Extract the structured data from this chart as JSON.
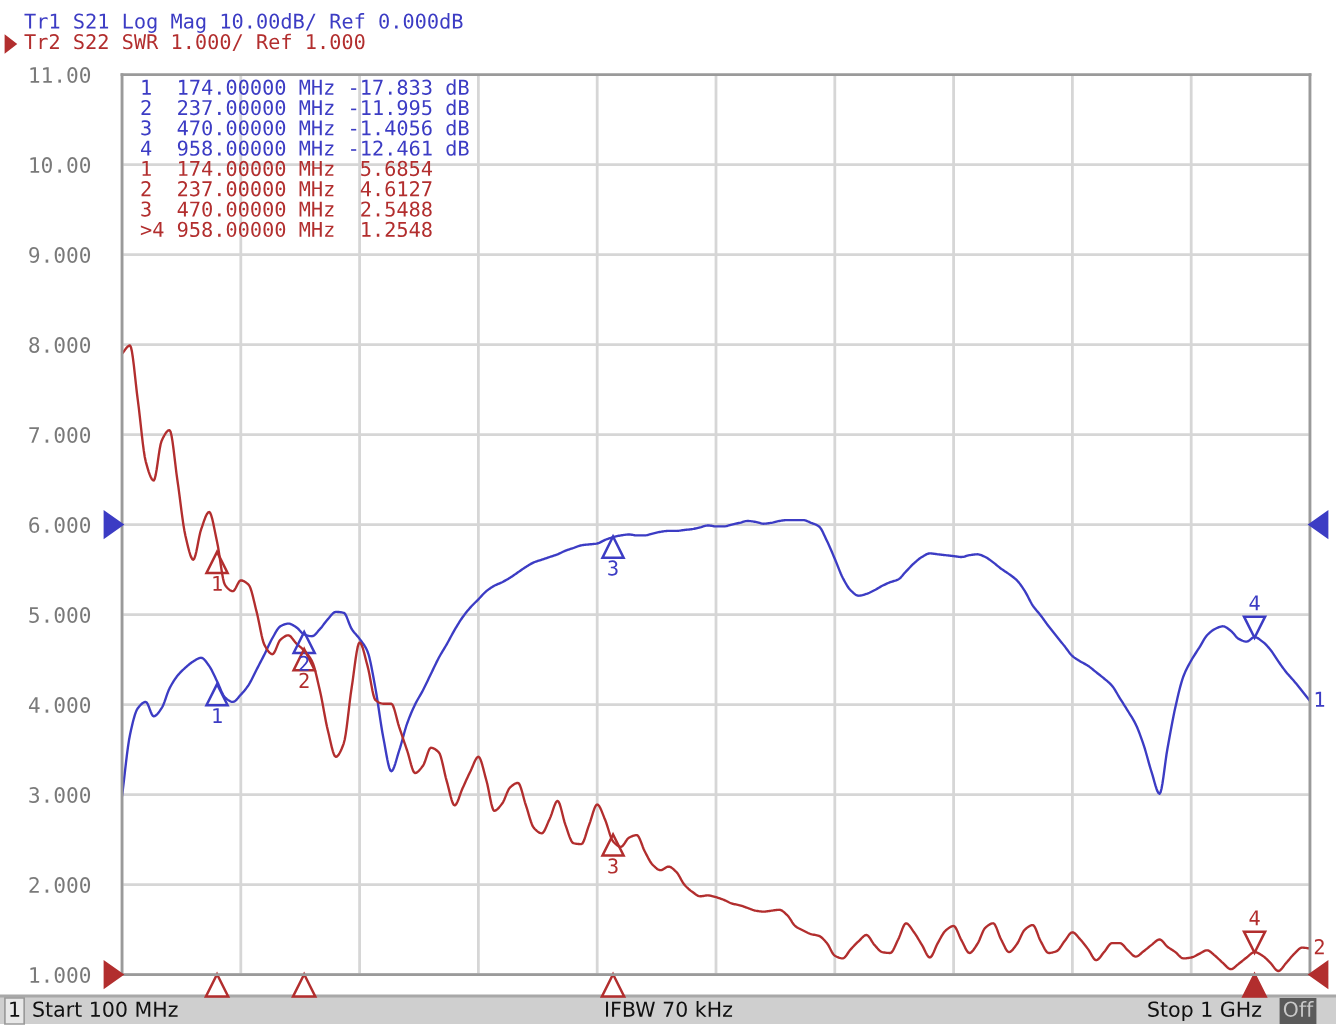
{
  "chart_data": {
    "type": "line",
    "title": "Tr1 S21 Log Mag 10.00dB/ Ref 0.000dB",
    "subtitle": "Tr2 S22 SWR 1.000/ Ref 1.000",
    "categories": [
      null,
      null,
      null,
      null,
      null,
      null,
      null,
      null,
      null,
      null,
      null,
      null,
      null,
      null,
      null,
      null,
      null,
      null,
      null,
      null,
      null,
      null,
      null,
      null,
      null,
      null,
      null,
      null,
      null,
      null,
      null,
      null,
      null,
      null,
      null,
      null,
      null,
      null,
      null,
      null,
      null,
      null,
      null,
      null,
      null,
      null,
      null,
      null,
      null,
      null,
      null,
      null,
      null,
      null,
      null,
      null,
      null,
      null,
      null,
      null,
      null,
      null,
      null,
      null,
      null,
      null,
      null,
      null,
      null,
      null,
      null,
      null,
      null,
      null,
      null,
      null,
      null,
      null,
      null,
      null,
      null,
      null,
      null,
      null,
      null,
      null,
      null,
      null,
      null,
      null,
      null,
      null,
      null,
      null,
      null,
      null,
      null,
      null,
      null,
      null,
      null,
      null,
      null,
      null,
      null,
      null,
      null,
      null,
      null,
      null,
      null,
      null,
      null,
      null,
      null,
      null,
      null,
      null,
      null,
      null,
      null,
      null,
      null,
      null,
      null,
      null,
      null,
      null,
      null,
      null,
      null,
      null,
      null,
      null,
      null,
      null,
      null,
      null,
      null,
      null,
      null,
      null,
      null,
      null,
      null,
      null,
      null,
      null,
      null,
      null,
      null
    ],
    "series": [
      {
        "color": "#3c3cc4",
        "values": [
          2.98,
          3.66,
          3.96,
          4.03,
          3.87,
          3.96,
          4.18,
          4.32,
          4.41,
          4.48,
          4.52,
          4.43,
          4.26,
          4.08,
          4.03,
          4.11,
          4.22,
          4.39,
          4.56,
          4.74,
          4.87,
          4.9,
          4.86,
          4.78,
          4.76,
          4.84,
          4.95,
          5.03,
          5.02,
          4.84,
          4.73,
          4.59,
          4.18,
          3.63,
          3.26,
          3.49,
          3.79,
          4.0,
          4.16,
          4.34,
          4.52,
          4.67,
          4.83,
          4.97,
          5.08,
          5.17,
          5.26,
          5.32,
          5.36,
          5.41,
          5.47,
          5.53,
          5.58,
          5.61,
          5.64,
          5.67,
          5.71,
          5.74,
          5.77,
          5.78,
          5.79,
          5.83,
          5.86,
          5.88,
          5.89,
          5.88,
          5.88,
          5.9,
          5.92,
          5.93,
          5.93,
          5.94,
          5.95,
          5.97,
          5.99,
          5.98,
          5.98,
          6.0,
          6.02,
          6.04,
          6.03,
          6.01,
          6.02,
          6.04,
          6.05,
          6.05,
          6.05,
          6.02,
          5.98,
          5.82,
          5.62,
          5.41,
          5.27,
          5.21,
          5.23,
          5.27,
          5.32,
          5.36,
          5.39,
          5.48,
          5.57,
          5.64,
          5.68,
          5.67,
          5.66,
          5.65,
          5.64,
          5.66,
          5.67,
          5.64,
          5.58,
          5.51,
          5.45,
          5.38,
          5.26,
          5.1,
          4.99,
          4.87,
          4.76,
          4.65,
          4.54,
          4.48,
          4.43,
          4.36,
          4.29,
          4.21,
          4.07,
          3.93,
          3.78,
          3.55,
          3.25,
          3.01,
          3.51,
          3.97,
          4.31,
          4.49,
          4.63,
          4.77,
          4.84,
          4.87,
          4.82,
          4.73,
          4.7,
          4.75,
          4.7,
          4.61,
          4.48,
          4.36,
          4.26,
          4.15,
          4.04
        ]
      },
      {
        "color": "#b22e2e",
        "values": [
          7.9,
          7.99,
          7.38,
          6.7,
          6.49,
          6.93,
          7.05,
          6.49,
          5.88,
          5.61,
          5.95,
          6.14,
          5.81,
          5.33,
          5.26,
          5.38,
          5.33,
          5.03,
          4.66,
          4.56,
          4.72,
          4.77,
          4.68,
          4.6,
          4.48,
          4.15,
          3.71,
          3.42,
          3.57,
          4.19,
          4.69,
          4.43,
          4.05,
          4.01,
          4.01,
          3.75,
          3.49,
          3.24,
          3.32,
          3.52,
          3.47,
          3.15,
          2.88,
          3.07,
          3.26,
          3.42,
          3.16,
          2.82,
          2.9,
          3.08,
          3.13,
          2.88,
          2.63,
          2.57,
          2.73,
          2.93,
          2.66,
          2.46,
          2.45,
          2.67,
          2.89,
          2.72,
          2.48,
          2.42,
          2.52,
          2.55,
          2.37,
          2.22,
          2.16,
          2.2,
          2.14,
          2.0,
          1.92,
          1.87,
          1.88,
          1.86,
          1.83,
          1.79,
          1.77,
          1.74,
          1.71,
          1.7,
          1.71,
          1.72,
          1.66,
          1.54,
          1.49,
          1.45,
          1.43,
          1.35,
          1.21,
          1.18,
          1.28,
          1.37,
          1.44,
          1.33,
          1.25,
          1.24,
          1.39,
          1.57,
          1.47,
          1.33,
          1.19,
          1.35,
          1.49,
          1.54,
          1.38,
          1.24,
          1.34,
          1.52,
          1.57,
          1.39,
          1.25,
          1.34,
          1.5,
          1.55,
          1.37,
          1.24,
          1.26,
          1.37,
          1.47,
          1.39,
          1.28,
          1.16,
          1.25,
          1.35,
          1.35,
          1.27,
          1.2,
          1.26,
          1.33,
          1.39,
          1.31,
          1.25,
          1.18,
          1.19,
          1.23,
          1.27,
          1.21,
          1.13,
          1.06,
          1.12,
          1.19,
          1.25,
          1.21,
          1.13,
          1.04,
          1.13,
          1.23,
          1.3,
          1.29
        ]
      },
      {
        "type": "scatter",
        "name": "1",
        "color": "#3c3cc4",
        "marker": "triangle",
        "values": [
          null,
          null,
          null,
          null,
          null,
          null,
          null,
          null,
          null,
          null,
          null,
          null,
          4.11,
          null,
          null,
          null,
          null,
          null,
          null,
          null,
          null,
          null,
          null,
          null,
          null,
          null,
          null,
          null,
          null,
          null,
          null,
          null,
          null,
          null,
          null,
          null,
          null,
          null,
          null,
          null,
          null,
          null,
          null,
          null,
          null,
          null,
          null,
          null,
          null,
          null,
          null,
          null,
          null,
          null,
          null,
          null,
          null,
          null,
          null,
          null,
          null,
          null,
          null,
          null,
          null,
          null,
          null,
          null,
          null,
          null,
          null,
          null,
          null,
          null,
          null,
          null,
          null,
          null,
          null,
          null,
          null,
          null,
          null,
          null,
          null,
          null,
          null,
          null,
          null,
          null,
          null,
          null,
          null,
          null,
          null,
          null,
          null,
          null,
          null,
          null,
          null,
          null,
          null,
          null,
          null,
          null,
          null,
          null,
          null,
          null,
          null,
          null,
          null,
          null,
          null,
          null,
          null,
          null,
          null,
          null,
          null,
          null,
          null,
          null,
          null,
          null,
          null,
          null,
          null,
          null,
          null,
          null,
          null,
          null,
          null,
          null,
          null,
          null,
          null,
          null,
          null,
          null,
          null,
          null,
          null,
          null,
          null,
          null,
          null,
          null,
          null
        ]
      },
      {
        "type": "scatter",
        "name": "2",
        "color": "#3c3cc4",
        "marker": "triangle",
        "values": [
          null,
          null,
          null,
          null,
          null,
          null,
          null,
          null,
          null,
          null,
          null,
          null,
          null,
          null,
          null,
          null,
          null,
          null,
          null,
          null,
          null,
          null,
          null,
          4.69,
          null,
          null,
          null,
          null,
          null,
          null,
          null,
          null,
          null,
          null,
          null,
          null,
          null,
          null,
          null,
          null,
          null,
          null,
          null,
          null,
          null,
          null,
          null,
          null,
          null,
          null,
          null,
          null,
          null,
          null,
          null,
          null,
          null,
          null,
          null,
          null,
          null,
          null,
          null,
          null,
          null,
          null,
          null,
          null,
          null,
          null,
          null,
          null,
          null,
          null,
          null,
          null,
          null,
          null,
          null,
          null,
          null,
          null,
          null,
          null,
          null,
          null,
          null,
          null,
          null,
          null,
          null,
          null,
          null,
          null,
          null,
          null,
          null,
          null,
          null,
          null,
          null,
          null,
          null,
          null,
          null,
          null,
          null,
          null,
          null,
          null,
          null,
          null,
          null,
          null,
          null,
          null,
          null,
          null,
          null,
          null,
          null,
          null,
          null,
          null,
          null,
          null,
          null,
          null,
          null,
          null,
          null,
          null,
          null,
          null,
          null,
          null,
          null,
          null,
          null,
          null,
          null,
          null,
          null,
          null,
          null,
          null,
          null,
          null,
          null,
          null,
          null
        ]
      },
      {
        "type": "scatter",
        "name": "3",
        "color": "#3c3cc4",
        "marker": "triangle",
        "values": [
          null,
          null,
          null,
          null,
          null,
          null,
          null,
          null,
          null,
          null,
          null,
          null,
          null,
          null,
          null,
          null,
          null,
          null,
          null,
          null,
          null,
          null,
          null,
          null,
          null,
          null,
          null,
          null,
          null,
          null,
          null,
          null,
          null,
          null,
          null,
          null,
          null,
          null,
          null,
          null,
          null,
          null,
          null,
          null,
          null,
          null,
          null,
          null,
          null,
          null,
          null,
          null,
          null,
          null,
          null,
          null,
          null,
          null,
          null,
          null,
          null,
          null,
          5.75,
          null,
          null,
          null,
          null,
          null,
          null,
          null,
          null,
          null,
          null,
          null,
          null,
          null,
          null,
          null,
          null,
          null,
          null,
          null,
          null,
          null,
          null,
          null,
          null,
          null,
          null,
          null,
          null,
          null,
          null,
          null,
          null,
          null,
          null,
          null,
          null,
          null,
          null,
          null,
          null,
          null,
          null,
          null,
          null,
          null,
          null,
          null,
          null,
          null,
          null,
          null,
          null,
          null,
          null,
          null,
          null,
          null,
          null,
          null,
          null,
          null,
          null,
          null,
          null,
          null,
          null,
          null,
          null,
          null,
          null,
          null,
          null,
          null,
          null,
          null,
          null,
          null,
          null,
          null,
          null,
          null,
          null,
          null,
          null,
          null,
          null,
          null,
          null
        ]
      },
      {
        "type": "scatter",
        "name": "4",
        "color": "#3c3cc4",
        "marker": "triangle",
        "values": [
          null,
          null,
          null,
          null,
          null,
          null,
          null,
          null,
          null,
          null,
          null,
          null,
          null,
          null,
          null,
          null,
          null,
          null,
          null,
          null,
          null,
          null,
          null,
          null,
          null,
          null,
          null,
          null,
          null,
          null,
          null,
          null,
          null,
          null,
          null,
          null,
          null,
          null,
          null,
          null,
          null,
          null,
          null,
          null,
          null,
          null,
          null,
          null,
          null,
          null,
          null,
          null,
          null,
          null,
          null,
          null,
          null,
          null,
          null,
          null,
          null,
          null,
          null,
          null,
          null,
          null,
          null,
          null,
          null,
          null,
          null,
          null,
          null,
          null,
          null,
          null,
          null,
          null,
          null,
          null,
          null,
          null,
          null,
          null,
          null,
          null,
          null,
          null,
          null,
          null,
          null,
          null,
          null,
          null,
          null,
          null,
          null,
          null,
          null,
          null,
          null,
          null,
          null,
          null,
          null,
          null,
          null,
          null,
          null,
          null,
          null,
          null,
          null,
          null,
          null,
          null,
          null,
          null,
          null,
          null,
          null,
          null,
          null,
          null,
          null,
          null,
          null,
          null,
          null,
          null,
          null,
          null,
          null,
          null,
          null,
          null,
          null,
          null,
          null,
          null,
          null,
          null,
          null,
          4.86,
          null,
          null,
          null,
          null,
          null,
          null,
          null
        ]
      },
      {
        "type": "scatter",
        "name": "1",
        "color": "#b22e2e",
        "marker": "triangle",
        "values": [
          null,
          null,
          null,
          null,
          null,
          null,
          null,
          null,
          null,
          null,
          null,
          null,
          5.58,
          null,
          null,
          null,
          null,
          null,
          null,
          null,
          null,
          null,
          null,
          null,
          null,
          null,
          null,
          null,
          null,
          null,
          null,
          null,
          null,
          null,
          null,
          null,
          null,
          null,
          null,
          null,
          null,
          null,
          null,
          null,
          null,
          null,
          null,
          null,
          null,
          null,
          null,
          null,
          null,
          null,
          null,
          null,
          null,
          null,
          null,
          null,
          null,
          null,
          null,
          null,
          null,
          null,
          null,
          null,
          null,
          null,
          null,
          null,
          null,
          null,
          null,
          null,
          null,
          null,
          null,
          null,
          null,
          null,
          null,
          null,
          null,
          null,
          null,
          null,
          null,
          null,
          null,
          null,
          null,
          null,
          null,
          null,
          null,
          null,
          null,
          null,
          null,
          null,
          null,
          null,
          null,
          null,
          null,
          null,
          null,
          null,
          null,
          null,
          null,
          null,
          null,
          null,
          null,
          null,
          null,
          null,
          null,
          null,
          null,
          null,
          null,
          null,
          null,
          null,
          null,
          null,
          null,
          null,
          null,
          null,
          null,
          null,
          null,
          null,
          null,
          null,
          null,
          null,
          null,
          null,
          null,
          null,
          null,
          null,
          null,
          null,
          null
        ]
      },
      {
        "type": "scatter",
        "name": "2",
        "color": "#b22e2e",
        "marker": "triangle",
        "values": [
          null,
          null,
          null,
          null,
          null,
          null,
          null,
          null,
          null,
          null,
          null,
          null,
          null,
          null,
          null,
          null,
          null,
          null,
          null,
          null,
          null,
          null,
          null,
          4.5,
          null,
          null,
          null,
          null,
          null,
          null,
          null,
          null,
          null,
          null,
          null,
          null,
          null,
          null,
          null,
          null,
          null,
          null,
          null,
          null,
          null,
          null,
          null,
          null,
          null,
          null,
          null,
          null,
          null,
          null,
          null,
          null,
          null,
          null,
          null,
          null,
          null,
          null,
          null,
          null,
          null,
          null,
          null,
          null,
          null,
          null,
          null,
          null,
          null,
          null,
          null,
          null,
          null,
          null,
          null,
          null,
          null,
          null,
          null,
          null,
          null,
          null,
          null,
          null,
          null,
          null,
          null,
          null,
          null,
          null,
          null,
          null,
          null,
          null,
          null,
          null,
          null,
          null,
          null,
          null,
          null,
          null,
          null,
          null,
          null,
          null,
          null,
          null,
          null,
          null,
          null,
          null,
          null,
          null,
          null,
          null,
          null,
          null,
          null,
          null,
          null,
          null,
          null,
          null,
          null,
          null,
          null,
          null,
          null,
          null,
          null,
          null,
          null,
          null,
          null,
          null,
          null,
          null,
          null,
          null,
          null,
          null,
          null,
          null,
          null,
          null,
          null
        ]
      },
      {
        "type": "scatter",
        "name": "3",
        "color": "#b22e2e",
        "marker": "triangle",
        "values": [
          null,
          null,
          null,
          null,
          null,
          null,
          null,
          null,
          null,
          null,
          null,
          null,
          null,
          null,
          null,
          null,
          null,
          null,
          null,
          null,
          null,
          null,
          null,
          null,
          null,
          null,
          null,
          null,
          null,
          null,
          null,
          null,
          null,
          null,
          null,
          null,
          null,
          null,
          null,
          null,
          null,
          null,
          null,
          null,
          null,
          null,
          null,
          null,
          null,
          null,
          null,
          null,
          null,
          null,
          null,
          null,
          null,
          null,
          null,
          null,
          null,
          null,
          2.44,
          null,
          null,
          null,
          null,
          null,
          null,
          null,
          null,
          null,
          null,
          null,
          null,
          null,
          null,
          null,
          null,
          null,
          null,
          null,
          null,
          null,
          null,
          null,
          null,
          null,
          null,
          null,
          null,
          null,
          null,
          null,
          null,
          null,
          null,
          null,
          null,
          null,
          null,
          null,
          null,
          null,
          null,
          null,
          null,
          null,
          null,
          null,
          null,
          null,
          null,
          null,
          null,
          null,
          null,
          null,
          null,
          null,
          null,
          null,
          null,
          null,
          null,
          null,
          null,
          null,
          null,
          null,
          null,
          null,
          null,
          null,
          null,
          null,
          null,
          null,
          null,
          null,
          null,
          null,
          null,
          null,
          null,
          null,
          null,
          null,
          null,
          null,
          null
        ]
      },
      {
        "type": "scatter",
        "name": "4",
        "color": "#b22e2e",
        "marker": "triangle",
        "values": [
          null,
          null,
          null,
          null,
          null,
          null,
          null,
          null,
          null,
          null,
          null,
          null,
          null,
          null,
          null,
          null,
          null,
          null,
          null,
          null,
          null,
          null,
          null,
          null,
          null,
          null,
          null,
          null,
          null,
          null,
          null,
          null,
          null,
          null,
          null,
          null,
          null,
          null,
          null,
          null,
          null,
          null,
          null,
          null,
          null,
          null,
          null,
          null,
          null,
          null,
          null,
          null,
          null,
          null,
          null,
          null,
          null,
          null,
          null,
          null,
          null,
          null,
          null,
          null,
          null,
          null,
          null,
          null,
          null,
          null,
          null,
          null,
          null,
          null,
          null,
          null,
          null,
          null,
          null,
          null,
          null,
          null,
          null,
          null,
          null,
          null,
          null,
          null,
          null,
          null,
          null,
          null,
          null,
          null,
          null,
          null,
          null,
          null,
          null,
          null,
          null,
          null,
          null,
          null,
          null,
          null,
          null,
          null,
          null,
          null,
          null,
          null,
          null,
          null,
          null,
          null,
          null,
          null,
          null,
          null,
          null,
          null,
          null,
          null,
          null,
          null,
          null,
          null,
          null,
          null,
          null,
          null,
          null,
          null,
          null,
          null,
          null,
          null,
          null,
          null,
          null,
          null,
          null,
          1.36,
          null,
          null,
          null,
          null,
          null,
          null,
          null
        ]
      }
    ],
    "ylim": [
      1,
      11
    ],
    "yticks": [
      {
        "value": 1,
        "label": "1.000"
      },
      {
        "value": 2,
        "label": "2.000"
      },
      {
        "value": 3,
        "label": "3.000"
      },
      {
        "value": 4,
        "label": "4.000"
      },
      {
        "value": 5,
        "label": "5.000"
      },
      {
        "value": 6,
        "label": "6.000"
      },
      {
        "value": 7,
        "label": "7.000"
      },
      {
        "value": 8,
        "label": "8.000"
      },
      {
        "value": 9,
        "label": "9.000"
      },
      {
        "value": 10,
        "label": "10.00"
      },
      {
        "value": 11,
        "label": "11.00"
      }
    ],
    "grid": true,
    "annotations": [
      "1  174.00000 MHz -17.833 dB",
      "2  237.00000 MHz -11.995 dB",
      "3  470.00000 MHz -1.4056 dB",
      "4  958.00000 MHz -12.461 dB",
      "1  174.00000 MHz  5.6854",
      "2  237.00000 MHz  4.6127",
      "3  470.00000 MHz  2.5488",
      ">4 958.00000 MHz  1.2548",
      {
        "text": "1",
        "y": 4.04
      },
      {
        "text": "2",
        "y": 1.29
      },
      "1",
      "Start 100 MHz",
      "IFBW 70 kHz",
      "Stop 1 GHz",
      "Off"
    ]
  }
}
